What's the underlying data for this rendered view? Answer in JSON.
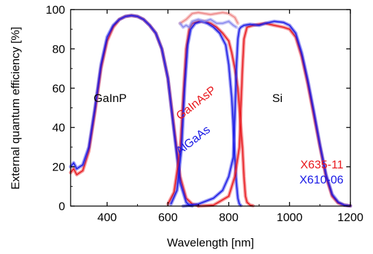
{
  "chart_data": {
    "type": "line",
    "xlabel": "Wavelength [nm]",
    "ylabel": "External quantum efficiency [%]",
    "xlim": [
      280,
      1200
    ],
    "ylim": [
      0,
      100
    ],
    "xticks": [
      400,
      600,
      800,
      1000,
      1200
    ],
    "yticks": [
      0,
      20,
      40,
      60,
      80,
      100
    ],
    "grid": false,
    "legend_position": "bottom-right",
    "legend": [
      {
        "name": "X635-11",
        "color": "#e8191e"
      },
      {
        "name": "X610-06",
        "color": "#1a1ae6"
      }
    ],
    "region_labels": [
      {
        "text": "GaInP",
        "x": 410,
        "y": 53
      },
      {
        "text": "Si",
        "x": 960,
        "y": 53
      }
    ],
    "curve_labels": [
      {
        "text": "GaInAsP",
        "color": "#e8191e",
        "x": 700,
        "y": 51,
        "angle": -38
      },
      {
        "text": "AlGaAs",
        "color": "#1a1ae6",
        "x": 690,
        "y": 32,
        "angle": -38
      }
    ],
    "series": [
      {
        "name": "X635-11 GaInP",
        "color": "#e8191e",
        "x": [
          280,
          290,
          300,
          320,
          340,
          360,
          380,
          400,
          420,
          440,
          460,
          480,
          500,
          520,
          540,
          560,
          580,
          600,
          620,
          640,
          660,
          680,
          700
        ],
        "y": [
          17,
          19,
          16,
          18,
          28,
          48,
          70,
          84,
          91,
          95,
          96.5,
          97,
          96.5,
          95,
          92,
          88,
          80,
          65,
          40,
          15,
          4,
          1,
          0.3
        ]
      },
      {
        "name": "X610-06 GaInP",
        "color": "#1a1ae6",
        "x": [
          280,
          290,
          300,
          320,
          340,
          360,
          380,
          400,
          420,
          440,
          460,
          480,
          500,
          520,
          540,
          560,
          580,
          600,
          620,
          640,
          660,
          670,
          680
        ],
        "y": [
          20,
          22,
          19,
          21,
          30,
          50,
          72,
          86,
          92,
          95,
          96.5,
          97,
          96.5,
          95,
          92,
          88,
          80,
          65,
          38,
          12,
          2,
          0.5,
          0.1
        ]
      },
      {
        "name": "X635-11 GaInAsP",
        "color": "#e8191e",
        "x": [
          600,
          620,
          640,
          650,
          660,
          670,
          680,
          700,
          720,
          740,
          760,
          780,
          800,
          810,
          820,
          830,
          835,
          840,
          845,
          850,
          855,
          860,
          870,
          880
        ],
        "y": [
          1,
          7,
          28,
          55,
          80,
          90,
          93,
          94,
          94,
          93,
          91,
          88,
          84,
          78,
          70,
          60,
          50,
          40,
          30,
          15,
          5,
          2,
          0.5,
          0.2
        ]
      },
      {
        "name": "X610-06 AlGaAs",
        "color": "#1a1ae6",
        "x": [
          610,
          630,
          645,
          655,
          665,
          675,
          690,
          710,
          730,
          750,
          770,
          790,
          800,
          810,
          815,
          820,
          825,
          830,
          835,
          840
        ],
        "y": [
          1,
          8,
          30,
          60,
          82,
          90,
          93,
          94,
          93,
          91,
          88,
          82,
          72,
          55,
          40,
          25,
          12,
          4,
          1,
          0.3
        ]
      },
      {
        "name": "X635-11 Si",
        "color": "#e8191e",
        "x": [
          700,
          750,
          800,
          820,
          835,
          840,
          845,
          850,
          860,
          880,
          900,
          920,
          950,
          980,
          1000,
          1020,
          1040,
          1060,
          1080,
          1100,
          1120,
          1140,
          1160,
          1180,
          1200
        ],
        "y": [
          0,
          0.5,
          5,
          15,
          30,
          50,
          70,
          85,
          91,
          92,
          92.5,
          93,
          92,
          91,
          90,
          86,
          76,
          62,
          46,
          30,
          15,
          5,
          1.5,
          0.5,
          0.1
        ]
      },
      {
        "name": "X610-06 Si",
        "color": "#1a1ae6",
        "x": [
          650,
          700,
          750,
          780,
          800,
          815,
          820,
          825,
          830,
          835,
          840,
          850,
          870,
          900,
          920,
          950,
          980,
          1000,
          1020,
          1040,
          1060,
          1080,
          1100,
          1120,
          1140,
          1160,
          1180,
          1200
        ],
        "y": [
          0,
          1,
          4,
          8,
          15,
          25,
          45,
          70,
          85,
          90,
          91,
          92,
          92.5,
          92,
          93,
          94,
          93.5,
          92,
          88,
          78,
          64,
          48,
          31,
          16,
          6,
          2,
          0.5,
          0.1
        ]
      },
      {
        "name": "X635-11 total",
        "color": "#ee8888",
        "x": [
          640,
          660,
          680,
          700,
          720,
          740,
          760,
          780,
          800,
          820,
          830
        ],
        "y": [
          93,
          95,
          98,
          98.5,
          98,
          97.5,
          98,
          98.5,
          98,
          96,
          93
        ]
      },
      {
        "name": "X610-06 total",
        "color": "#8888ee",
        "x": [
          640,
          650,
          660,
          670,
          680,
          700,
          720,
          740,
          760,
          780,
          800,
          815,
          825
        ],
        "y": [
          93,
          91,
          92,
          91,
          94,
          95,
          94,
          95,
          93,
          93,
          94,
          92,
          91
        ]
      }
    ]
  }
}
